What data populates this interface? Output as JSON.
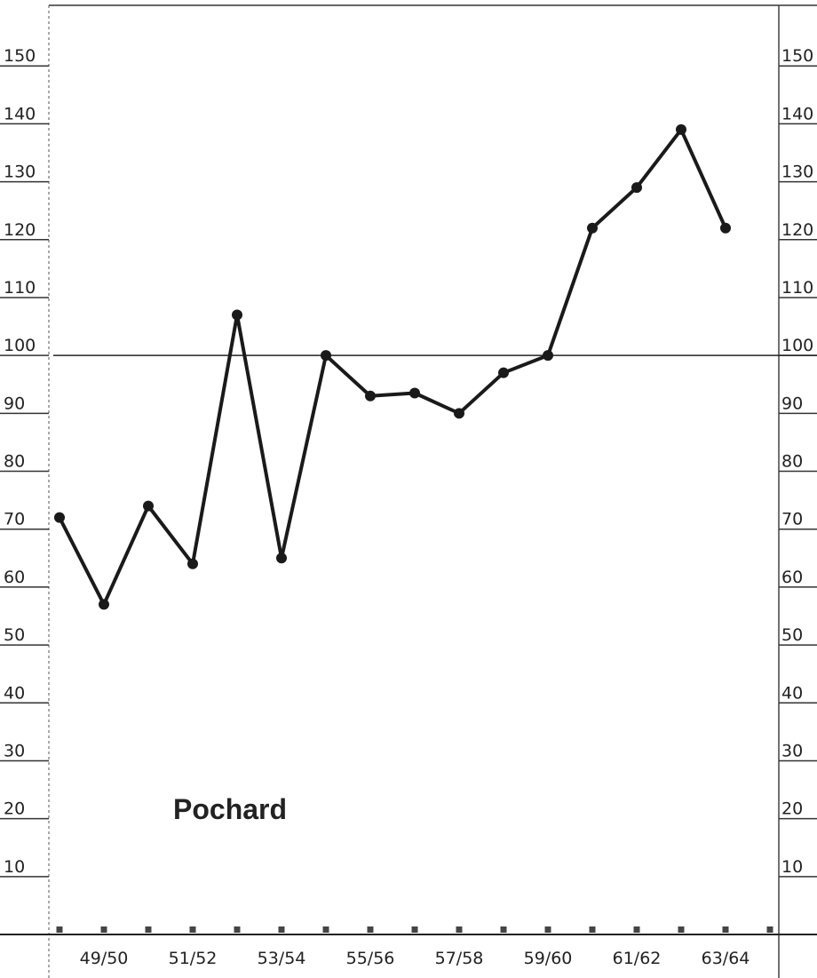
{
  "chart_data": {
    "type": "line",
    "annotation": "Pochard",
    "categories": [
      null,
      "49/50",
      null,
      "51/52",
      null,
      "53/54",
      null,
      "55/56",
      null,
      "57/58",
      null,
      "59/60",
      null,
      "61/62",
      null,
      "63/64"
    ],
    "values": [
      72,
      57,
      74,
      64,
      107,
      65,
      100,
      93,
      93.5,
      90,
      97,
      100,
      122,
      129,
      139,
      122
    ],
    "color": "#1a1a1a",
    "ylim": [
      0,
      160
    ],
    "yticks": [
      10,
      20,
      30,
      40,
      50,
      60,
      70,
      80,
      90,
      100,
      110,
      120,
      130,
      140,
      150
    ],
    "reference_line": 100
  }
}
